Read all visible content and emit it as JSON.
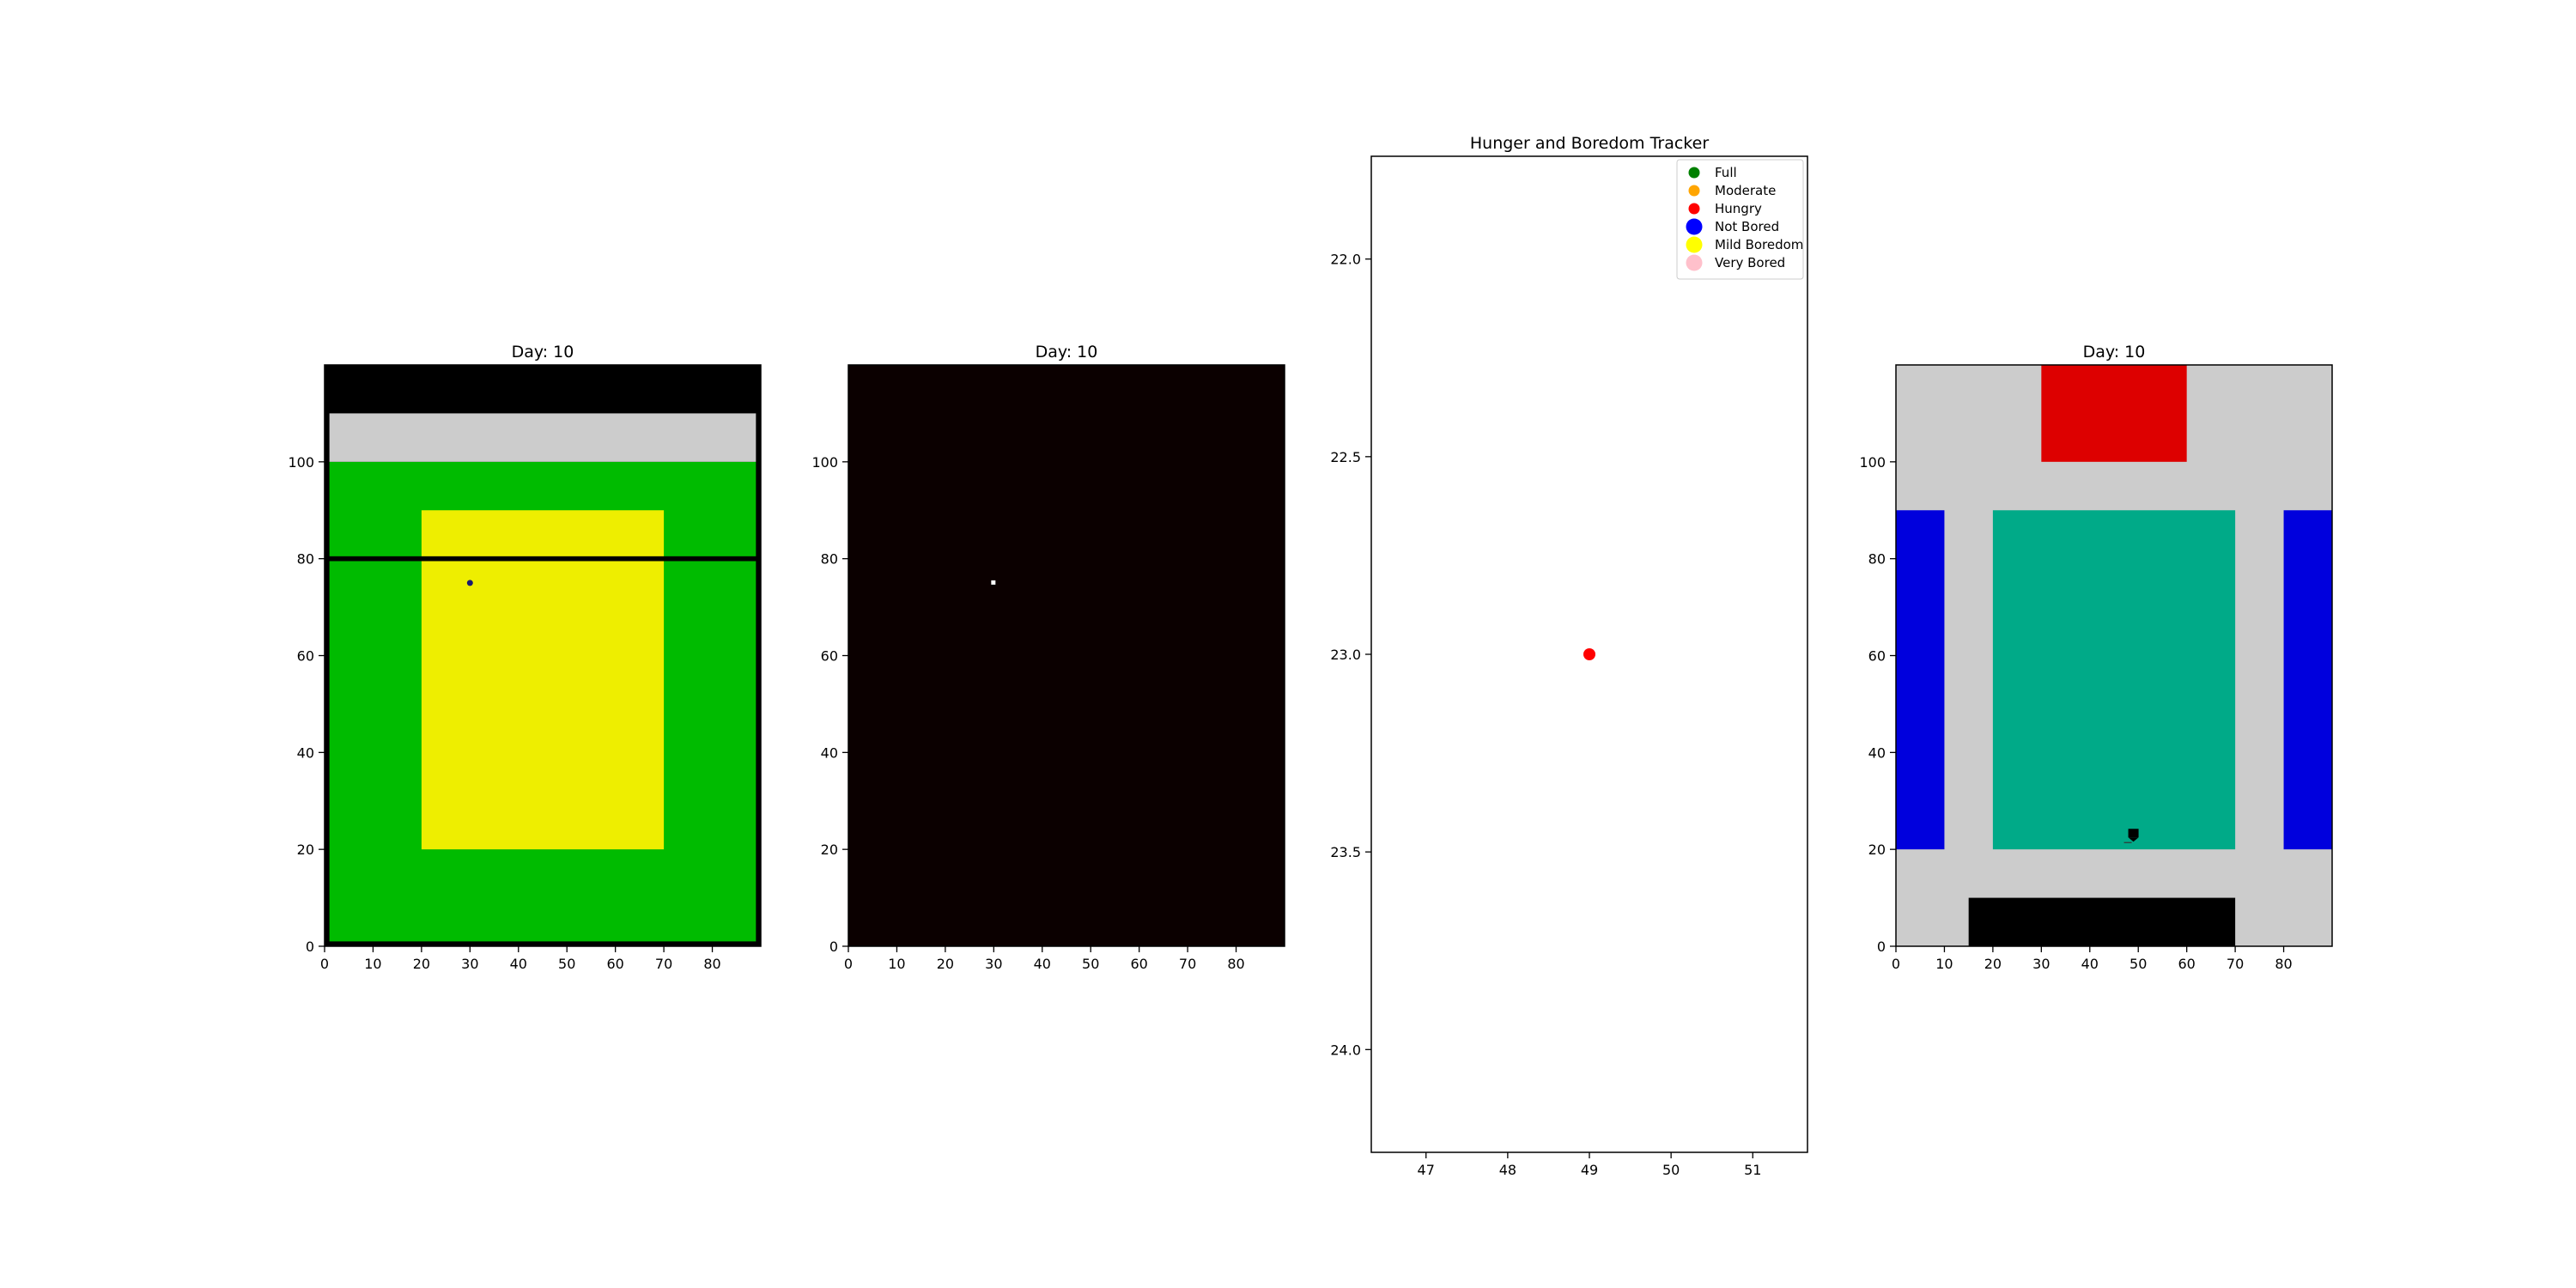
{
  "chart_data": [
    {
      "type": "heatmap",
      "title": "Day: 10",
      "xlim": [
        0,
        90
      ],
      "ylim": [
        120,
        0
      ],
      "xticks": [
        0,
        10,
        20,
        30,
        40,
        50,
        60,
        70,
        80
      ],
      "yticks": [
        0,
        20,
        40,
        60,
        80,
        100
      ],
      "regions": [
        {
          "name": "ground",
          "x": [
            0,
            90
          ],
          "y": [
            0,
            120
          ],
          "color": "#000000"
        },
        {
          "name": "grass",
          "x": [
            1,
            89
          ],
          "y": [
            1,
            100
          ],
          "color": "#00bb00"
        },
        {
          "name": "path",
          "x": [
            1,
            89
          ],
          "y": [
            100,
            110
          ],
          "color": "#cccccc"
        },
        {
          "name": "field",
          "x": [
            20,
            70
          ],
          "y": [
            20,
            90
          ],
          "color": "#eeee00"
        },
        {
          "name": "fence",
          "x": [
            0,
            90
          ],
          "y": [
            79.5,
            80.5
          ],
          "color": "#000000"
        }
      ],
      "agents": [
        {
          "x": 30,
          "y": 75,
          "color": "#1a1a6e"
        }
      ]
    },
    {
      "type": "heatmap",
      "title": "Day: 10",
      "xlim": [
        0,
        90
      ],
      "ylim": [
        120,
        0
      ],
      "xticks": [
        0,
        10,
        20,
        30,
        40,
        50,
        60,
        70,
        80
      ],
      "yticks": [
        0,
        20,
        40,
        60,
        80,
        100
      ],
      "regions": [
        {
          "name": "background",
          "x": [
            0,
            90
          ],
          "y": [
            0,
            120
          ],
          "color": "#0b0000"
        }
      ],
      "agents": [
        {
          "x": 30,
          "y": 75,
          "color": "#ffffff"
        }
      ]
    },
    {
      "type": "scatter",
      "title": "Hunger and Boredom Tracker",
      "xlim": [
        46.33,
        51.67
      ],
      "ylim": [
        21.74,
        24.26
      ],
      "xticks": [
        47,
        48,
        49,
        50,
        51
      ],
      "yticks": [
        22.0,
        22.5,
        23.0,
        23.5,
        24.0
      ],
      "ytick_labels": [
        "22.0",
        "22.5",
        "23.0",
        "23.5",
        "24.0"
      ],
      "points": [
        {
          "x": 49,
          "y": 23,
          "color": "#ff0000"
        }
      ],
      "legend_position": "top-right",
      "legend": [
        {
          "label": "Full",
          "color": "#008000",
          "size": "small"
        },
        {
          "label": "Moderate",
          "color": "#ffa500",
          "size": "small"
        },
        {
          "label": "Hungry",
          "color": "#ff0000",
          "size": "small"
        },
        {
          "label": "Not Bored",
          "color": "#0000ff",
          "size": "large"
        },
        {
          "label": "Mild Boredom",
          "color": "#ffff00",
          "size": "large"
        },
        {
          "label": "Very Bored",
          "color": "#ffc0cb",
          "size": "large"
        }
      ]
    },
    {
      "type": "heatmap",
      "title": "Day: 10",
      "xlim": [
        0,
        90
      ],
      "ylim": [
        120,
        0
      ],
      "xticks": [
        0,
        10,
        20,
        30,
        40,
        50,
        60,
        70,
        80
      ],
      "yticks": [
        0,
        20,
        40,
        60,
        80,
        100
      ],
      "regions": [
        {
          "name": "floor",
          "x": [
            0,
            90
          ],
          "y": [
            0,
            120
          ],
          "color": "#cccccc"
        },
        {
          "name": "top-zone",
          "x": [
            15,
            70
          ],
          "y": [
            0,
            10
          ],
          "color": "#000000"
        },
        {
          "name": "left-zone",
          "x": [
            0,
            10
          ],
          "y": [
            20,
            90
          ],
          "color": "#0000dd"
        },
        {
          "name": "right-zone",
          "x": [
            80,
            90
          ],
          "y": [
            20,
            90
          ],
          "color": "#0000dd"
        },
        {
          "name": "center-zone",
          "x": [
            20,
            70
          ],
          "y": [
            20,
            90
          ],
          "color": "#00aa88"
        },
        {
          "name": "bottom-zone",
          "x": [
            30,
            60
          ],
          "y": [
            100,
            120
          ],
          "color": "#dd0000"
        }
      ],
      "agents": [
        {
          "x": 49,
          "y": 23,
          "color": "#000000"
        }
      ]
    }
  ]
}
